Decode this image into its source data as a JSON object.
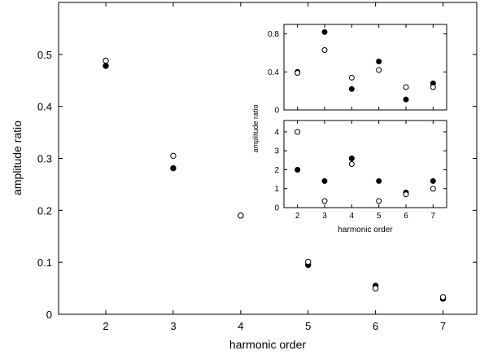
{
  "chart_data": [
    {
      "type": "scatter",
      "xlabel": "harmonic order",
      "ylabel": "amplitude ratio",
      "xlim": [
        1.3,
        7.5
      ],
      "ylim": [
        0,
        0.6
      ],
      "xticks": [
        2,
        3,
        4,
        5,
        6,
        7
      ],
      "yticks": [
        0,
        0.1,
        0.2,
        0.3,
        0.4,
        0.5
      ],
      "xtick_labels": [
        "2",
        "3",
        "4",
        "5",
        "6",
        "7"
      ],
      "ytick_labels": [
        "0",
        "0.1",
        "0.2",
        "0.3",
        "0.4",
        "0.5"
      ],
      "grid": false,
      "series": [
        {
          "marker": "filled-circle",
          "x": [
            2,
            3,
            4,
            5,
            6,
            7
          ],
          "values": [
            0.478,
            0.281,
            0.19,
            0.095,
            0.055,
            0.03
          ]
        },
        {
          "marker": "open-circle",
          "x": [
            2,
            3,
            4,
            5,
            6,
            7
          ],
          "values": [
            0.488,
            0.305,
            0.19,
            0.101,
            0.05,
            0.033
          ]
        }
      ]
    },
    {
      "type": "scatter",
      "placement": "inset-top-right-upper",
      "xlim": [
        1.5,
        7.5
      ],
      "ylim": [
        0,
        0.9
      ],
      "xticks": [
        2,
        3,
        4,
        5,
        6,
        7
      ],
      "yticks": [
        0,
        0.4,
        0.8
      ],
      "ytick_labels": [
        "0",
        "0.4",
        "0.8"
      ],
      "grid": false,
      "series": [
        {
          "marker": "filled-circle",
          "x": [
            2,
            3,
            4,
            5,
            6,
            7
          ],
          "values": [
            0.4,
            0.82,
            0.22,
            0.51,
            0.11,
            0.28
          ]
        },
        {
          "marker": "open-circle",
          "x": [
            2,
            3,
            4,
            5,
            6,
            7
          ],
          "values": [
            0.39,
            0.63,
            0.34,
            0.42,
            0.24,
            0.24
          ]
        }
      ]
    },
    {
      "type": "scatter",
      "placement": "inset-top-right-lower",
      "xlabel": "harmonic order",
      "ylabel": "amplitude ratio",
      "xlim": [
        1.5,
        7.5
      ],
      "ylim": [
        0,
        4.6
      ],
      "xticks": [
        2,
        3,
        4,
        5,
        6,
        7
      ],
      "yticks": [
        0,
        1,
        2,
        3,
        4
      ],
      "xtick_labels": [
        "2",
        "3",
        "4",
        "5",
        "6",
        "7"
      ],
      "ytick_labels": [
        "0",
        "1",
        "2",
        "3",
        "4"
      ],
      "grid": false,
      "series": [
        {
          "marker": "filled-circle",
          "x": [
            2,
            3,
            4,
            5,
            6,
            7
          ],
          "values": [
            2.0,
            1.4,
            2.6,
            1.4,
            0.8,
            1.4
          ]
        },
        {
          "marker": "open-circle",
          "x": [
            2,
            3,
            4,
            5,
            6,
            7
          ],
          "values": [
            4.0,
            0.35,
            2.3,
            0.35,
            0.7,
            1.0
          ]
        }
      ]
    }
  ]
}
